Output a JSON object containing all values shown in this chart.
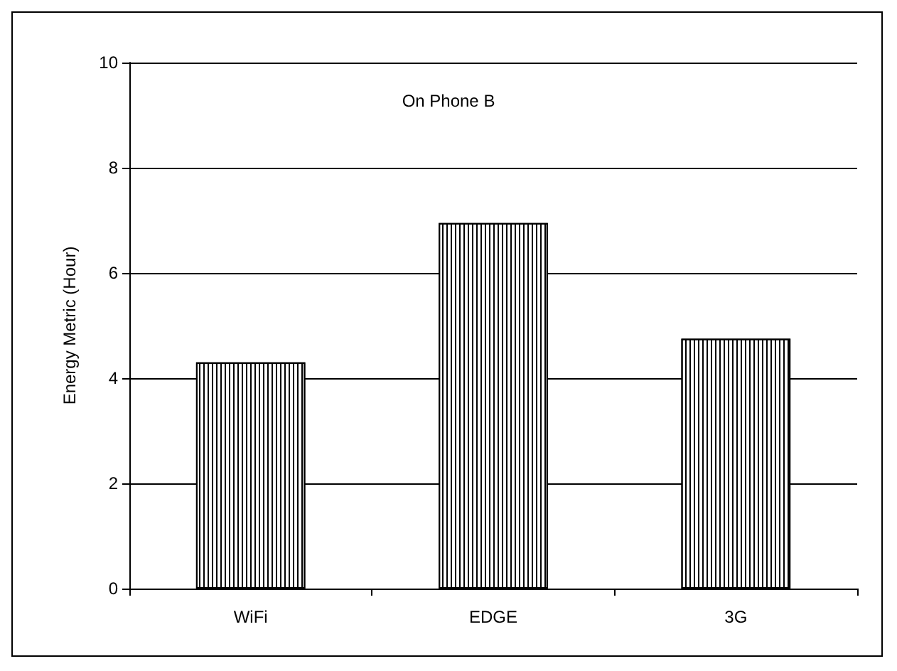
{
  "chart_data": {
    "type": "bar",
    "title": "On Phone B",
    "ylabel": "Energy Metric (Hour)",
    "categories": [
      "WiFi",
      "EDGE",
      "3G"
    ],
    "values": [
      4.3,
      6.95,
      4.75
    ],
    "color": "#000000",
    "ylim": [
      0,
      10
    ],
    "yticks": [
      0,
      2,
      4,
      6,
      8,
      10
    ],
    "grid": "y"
  }
}
